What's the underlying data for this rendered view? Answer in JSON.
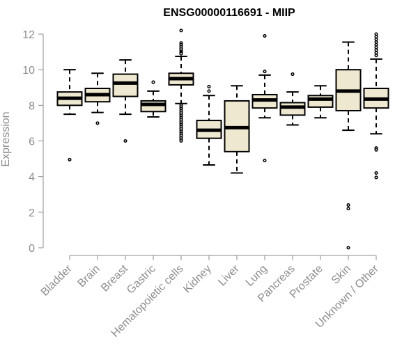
{
  "chart_data": {
    "type": "box",
    "title": "ENSG00000116691 - MIIP",
    "xlabel": "",
    "ylabel": "Expression",
    "ylim": [
      0,
      12
    ],
    "yticks": [
      0,
      2,
      4,
      6,
      8,
      10,
      12
    ],
    "grid": false,
    "colors": {
      "box_fill": "#efe8d0",
      "box_stroke": "#000000",
      "median": "#000000",
      "axis": "#8c8c8c"
    },
    "categories": [
      "Bladder",
      "Brain",
      "Breast",
      "Gastric",
      "Hematopoietic cells",
      "Kidney",
      "Liver",
      "Lung",
      "Pancreas",
      "Prostate",
      "Skin",
      "Unknown / Other"
    ],
    "boxes": [
      {
        "category": "Bladder",
        "whisker_low": 7.5,
        "q1": 8.0,
        "median": 8.4,
        "q3": 8.75,
        "whisker_high": 10.0,
        "outliers": [
          4.95
        ]
      },
      {
        "category": "Brain",
        "whisker_low": 7.6,
        "q1": 8.2,
        "median": 8.6,
        "q3": 8.95,
        "whisker_high": 9.8,
        "outliers": [
          7.0
        ]
      },
      {
        "category": "Breast",
        "whisker_low": 7.5,
        "q1": 8.5,
        "median": 9.25,
        "q3": 9.75,
        "whisker_high": 10.55,
        "outliers": [
          6.0
        ]
      },
      {
        "category": "Gastric",
        "whisker_low": 7.35,
        "q1": 7.65,
        "median": 8.05,
        "q3": 8.25,
        "whisker_high": 8.8,
        "outliers": [
          9.3
        ]
      },
      {
        "category": "Hematopoietic cells",
        "whisker_low": 8.1,
        "q1": 9.15,
        "median": 9.5,
        "q3": 9.8,
        "whisker_high": 10.75,
        "outliers": [
          12.2,
          11.5,
          11.4,
          11.3,
          11.2,
          11.1,
          11.0,
          10.95,
          10.9,
          8.0,
          7.9,
          7.8,
          7.7,
          7.6,
          7.5,
          7.4,
          7.3,
          7.2,
          7.1,
          7.0,
          6.9,
          6.8,
          6.7,
          6.6,
          6.5,
          6.4,
          6.3,
          6.2,
          6.1,
          6.0
        ]
      },
      {
        "category": "Kidney",
        "whisker_low": 4.65,
        "q1": 6.15,
        "median": 6.6,
        "q3": 7.15,
        "whisker_high": 8.55,
        "outliers": [
          9.05,
          8.8
        ]
      },
      {
        "category": "Liver",
        "whisker_low": 4.2,
        "q1": 5.4,
        "median": 6.75,
        "q3": 8.25,
        "whisker_high": 9.1,
        "outliers": []
      },
      {
        "category": "Lung",
        "whisker_low": 7.3,
        "q1": 7.85,
        "median": 8.3,
        "q3": 8.6,
        "whisker_high": 9.7,
        "outliers": [
          11.9,
          9.9,
          4.9
        ]
      },
      {
        "category": "Pancreas",
        "whisker_low": 6.9,
        "q1": 7.45,
        "median": 7.9,
        "q3": 8.15,
        "whisker_high": 8.75,
        "outliers": [
          9.75
        ]
      },
      {
        "category": "Prostate",
        "whisker_low": 7.3,
        "q1": 7.9,
        "median": 8.35,
        "q3": 8.55,
        "whisker_high": 9.1,
        "outliers": []
      },
      {
        "category": "Skin",
        "whisker_low": 6.6,
        "q1": 7.7,
        "median": 8.8,
        "q3": 10.0,
        "whisker_high": 11.55,
        "outliers": [
          2.4,
          2.2,
          0.0
        ]
      },
      {
        "category": "Unknown / Other",
        "whisker_low": 6.4,
        "q1": 7.85,
        "median": 8.35,
        "q3": 8.95,
        "whisker_high": 10.6,
        "outliers": [
          12.0,
          11.85,
          11.7,
          11.55,
          11.4,
          11.25,
          11.1,
          10.95,
          10.8,
          5.6,
          5.5,
          4.2,
          3.95
        ]
      }
    ]
  }
}
